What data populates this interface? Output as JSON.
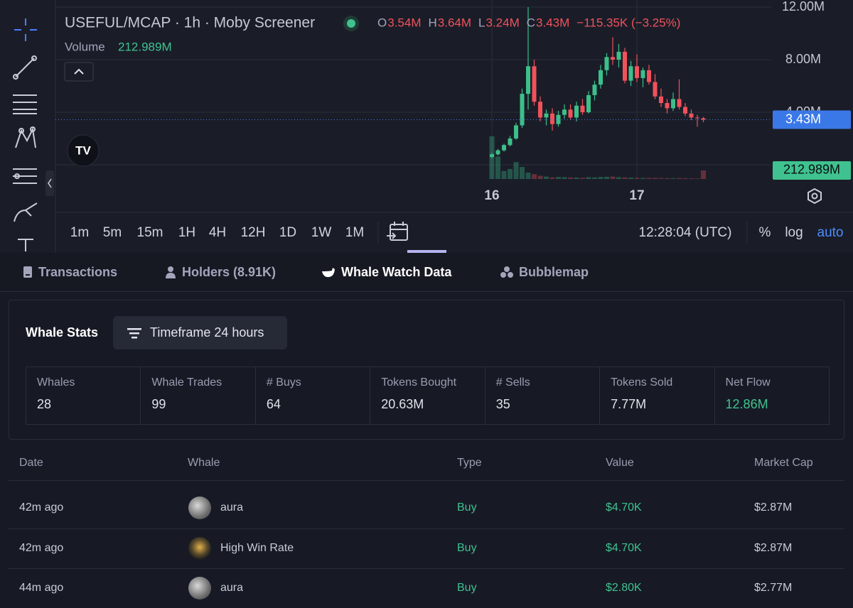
{
  "chart_data": {
    "type": "candlestick",
    "title": "USEFUL/MCAP · 1h · Moby Screener",
    "legend": [
      {
        "key": "O",
        "value": "3.54M"
      },
      {
        "key": "H",
        "value": "3.64M"
      },
      {
        "key": "L",
        "value": "3.24M"
      },
      {
        "key": "C",
        "value": "3.43M"
      }
    ],
    "change": "−115.35K (−3.25%)",
    "volume_label": "Volume",
    "volume_value": "212.989M",
    "last_price_label": "3.43M",
    "up_color": "#3dbf8a",
    "down_color": "#f0525c",
    "categories": [
      "16",
      null,
      null,
      null,
      null,
      null,
      null,
      null,
      null,
      null,
      null,
      null,
      null,
      null,
      null,
      null,
      null,
      null,
      null,
      null,
      null,
      null,
      null,
      null,
      "17",
      null,
      null,
      null,
      null,
      null,
      null,
      null,
      null,
      null,
      null,
      null
    ],
    "open": [
      600000,
      800000,
      1100000,
      1500000,
      2000000,
      3000000,
      5400000,
      7500000,
      4800000,
      3600000,
      3900000,
      3100000,
      3800000,
      4200000,
      3600000,
      4500000,
      4000000,
      5300000,
      6100000,
      7200000,
      8200000,
      8000000,
      8600000,
      6400000,
      7500000,
      6600000,
      7200000,
      6300000,
      5200000,
      4700000,
      4300000,
      5000000,
      4400000,
      3900000,
      3600000,
      3540000
    ],
    "high": [
      900000,
      1200000,
      1600000,
      2200000,
      3200000,
      5800000,
      12000000,
      8000000,
      5200000,
      4200000,
      4300000,
      4100000,
      4600000,
      4600000,
      4800000,
      5000000,
      5600000,
      6400000,
      7600000,
      8500000,
      9700000,
      9200000,
      8900000,
      7900000,
      8400000,
      7400000,
      7600000,
      6900000,
      5800000,
      5000000,
      5500000,
      6500000,
      4700000,
      4200000,
      3800000,
      3640000
    ],
    "low": [
      500000,
      700000,
      1000000,
      1400000,
      1900000,
      2800000,
      4200000,
      4500000,
      3300000,
      3000000,
      2600000,
      2900000,
      3500000,
      3400000,
      3300000,
      3800000,
      3900000,
      4900000,
      5800000,
      6800000,
      7600000,
      7400000,
      6200000,
      6000000,
      6300000,
      5900000,
      6100000,
      5000000,
      4400000,
      3900000,
      4100000,
      4200000,
      3700000,
      3400000,
      2900000,
      3240000
    ],
    "close": [
      800000,
      1100000,
      1500000,
      2000000,
      3000000,
      5400000,
      7500000,
      4800000,
      3600000,
      3900000,
      3100000,
      3800000,
      4200000,
      3600000,
      4500000,
      4000000,
      5300000,
      6100000,
      7200000,
      8200000,
      8000000,
      8600000,
      6400000,
      7500000,
      6600000,
      7200000,
      6300000,
      5200000,
      4700000,
      4300000,
      5000000,
      4400000,
      3900000,
      3600000,
      3550000,
      3430000
    ],
    "volume": [
      1065000000,
      560000000,
      200000000,
      250000000,
      420000000,
      300000000,
      160000000,
      120000000,
      80000000,
      60000000,
      40000000,
      50000000,
      45000000,
      40000000,
      35000000,
      30000000,
      45000000,
      40000000,
      50000000,
      55000000,
      60000000,
      45000000,
      40000000,
      35000000,
      30000000,
      25000000,
      30000000,
      28000000,
      25000000,
      22000000,
      20000000,
      25000000,
      22000000,
      18000000,
      15000000,
      212989000
    ],
    "ylim": [
      0,
      12000000
    ],
    "yticks": [
      {
        "value": 4000000,
        "label": "4.00M"
      },
      {
        "value": 8000000,
        "label": "8.00M"
      },
      {
        "value": 12000000,
        "label": "12.00M"
      }
    ],
    "volume_lim": [
      0,
      1100000000
    ],
    "grid": true
  },
  "chart_toolbar": {
    "intervals": [
      "1m",
      "5m",
      "15m",
      "1H",
      "4H",
      "12H",
      "1D",
      "1W",
      "1M"
    ],
    "clock": "12:28:04 (UTC)",
    "options": [
      "%",
      "log",
      "auto"
    ]
  },
  "tabs": [
    "Transactions",
    "Holders (8.91K)",
    "Whale Watch Data",
    "Bubblemap"
  ],
  "whale_stats": {
    "title": "Whale Stats",
    "timeframe": "Timeframe 24 hours",
    "stats": [
      {
        "label": "Whales",
        "value": "28"
      },
      {
        "label": "Whale Trades",
        "value": "99"
      },
      {
        "label": "# Buys",
        "value": "64"
      },
      {
        "label": "Tokens Bought",
        "value": "20.63M"
      },
      {
        "label": "# Sells",
        "value": "35"
      },
      {
        "label": "Tokens Sold",
        "value": "7.77M"
      },
      {
        "label": "Net Flow",
        "value": "12.86M"
      }
    ]
  },
  "table": {
    "columns": [
      "Date",
      "Whale",
      "Type",
      "Value",
      "Market Cap"
    ],
    "rows": [
      [
        "42m ago",
        "aura",
        "Buy",
        "$4.70K",
        "$2.87M"
      ],
      [
        "42m ago",
        "High Win Rate",
        "Buy",
        "$4.70K",
        "$2.87M"
      ],
      [
        "44m ago",
        "aura",
        "Buy",
        "$2.80K",
        "$2.77M"
      ]
    ]
  }
}
